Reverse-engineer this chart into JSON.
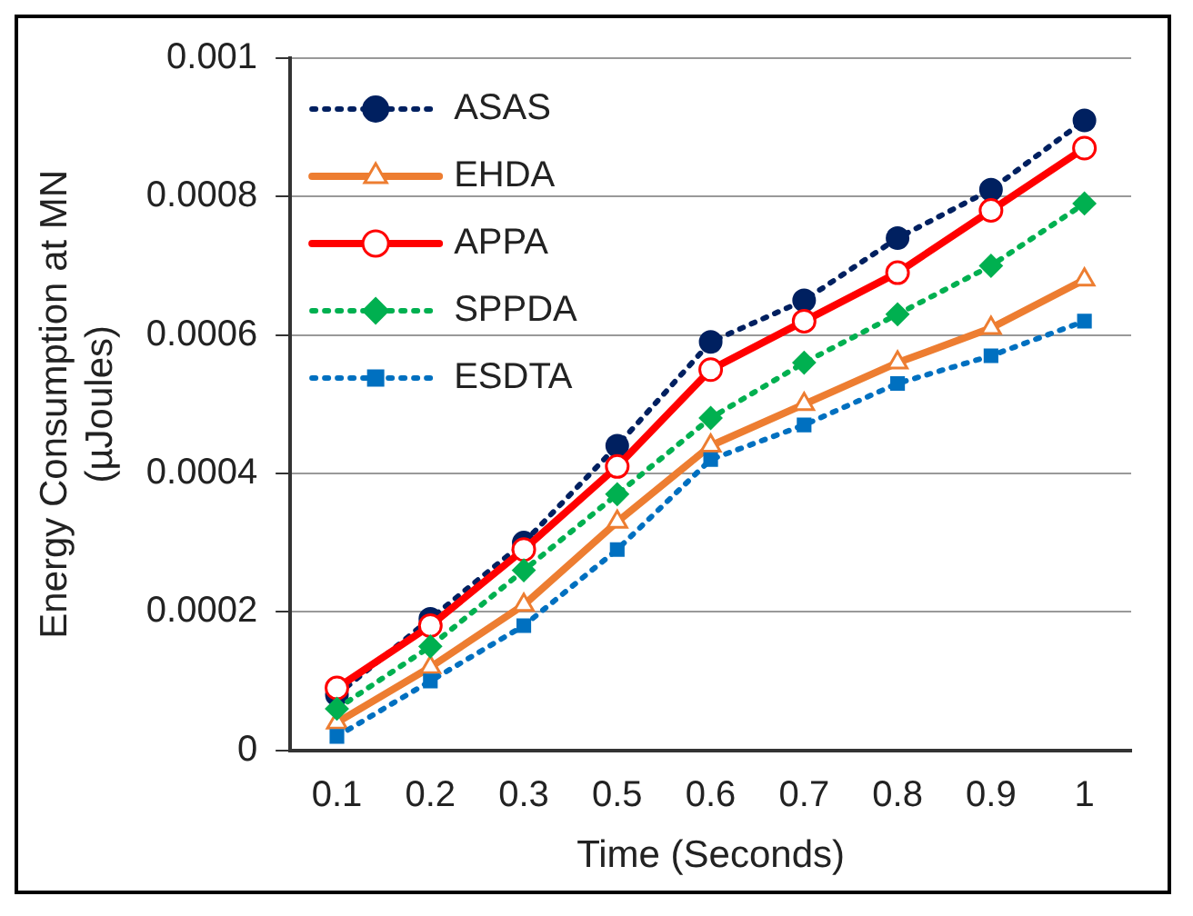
{
  "chart_data": {
    "type": "line",
    "xlabel": "Time (Seconds)",
    "ylabel": "Energy Consumption at MN\n(µJoules)",
    "categories": [
      "0.1",
      "0.2",
      "0.3",
      "0.5",
      "0.6",
      "0.7",
      "0.8",
      "0.9",
      "1"
    ],
    "ylim": [
      0,
      0.001
    ],
    "yticks": [
      0,
      0.0002,
      0.0004,
      0.0006,
      0.0008,
      0.001
    ],
    "grid": "y",
    "legend": "top left",
    "series": [
      {
        "name": "ASAS",
        "color": "#002060",
        "marker": "circle",
        "line_style": "dotted",
        "values": [
          8e-05,
          0.00019,
          0.0003,
          0.00044,
          0.00059,
          0.00065,
          0.00074,
          0.00081,
          0.00091
        ]
      },
      {
        "name": "EHDA",
        "color": "#ed7d31",
        "marker": "triangle",
        "line_style": "solid",
        "values": [
          4e-05,
          0.00012,
          0.00021,
          0.00033,
          0.00044,
          0.0005,
          0.00056,
          0.00061,
          0.00068
        ]
      },
      {
        "name": "APPA",
        "color": "#ff0000",
        "marker": "circle",
        "line_style": "solid",
        "values": [
          9e-05,
          0.00018,
          0.00029,
          0.00041,
          0.00055,
          0.00062,
          0.00069,
          0.00078,
          0.00087
        ]
      },
      {
        "name": "SPPDA",
        "color": "#00b050",
        "marker": "diamond",
        "line_style": "dotted",
        "values": [
          6e-05,
          0.00015,
          0.00026,
          0.00037,
          0.00048,
          0.00056,
          0.00063,
          0.0007,
          0.00079
        ]
      },
      {
        "name": "ESDTA",
        "color": "#0070c0",
        "marker": "square",
        "line_style": "dotted",
        "values": [
          2e-05,
          0.0001,
          0.00018,
          0.00029,
          0.00042,
          0.00047,
          0.00053,
          0.00057,
          0.00062
        ]
      }
    ]
  }
}
